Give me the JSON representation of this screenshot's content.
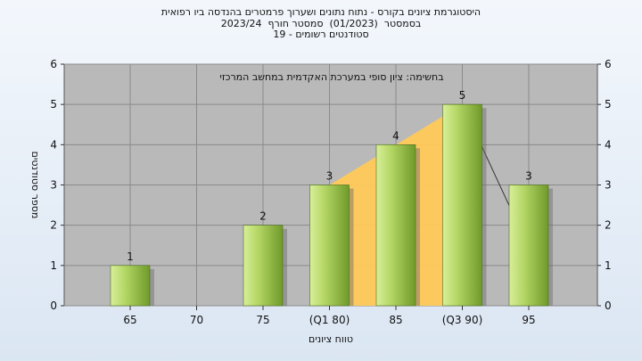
{
  "header": {
    "title_lines": [
      "היסטוגרמת ציונים בקורס - נתוח נתונים ושערוך פרמטרים בהנדסה ביו רפואית",
      "בסמסטר  (01/2023)  סמסטר חורף  2023/24",
      "סטודנטים רשומים - 19"
    ]
  },
  "colors": {
    "background": "#e4ecf6",
    "plot_bg": "#b9b9b9",
    "bar_light": "#d8ef9a",
    "bar_dark": "#6f9a2a",
    "area_fill": "#ffc958",
    "line": "#333333"
  },
  "chart_data": {
    "type": "bar",
    "categories": [
      "65",
      "70",
      "75",
      "(Q1 80)",
      "85",
      "(Q3 90)",
      "95"
    ],
    "values": [
      1,
      0,
      2,
      3,
      4,
      5,
      3
    ],
    "data_labels": [
      "1",
      "",
      "2",
      "3",
      "4",
      "5",
      "3"
    ],
    "annotation": "בחשימה: ציון סופי במערכת האקדמית במחשב המרכזי",
    "xlabel": "טווח ציונים",
    "ylabel": "מספר סטודנטים",
    "ylim": [
      0,
      6
    ],
    "yticks": [
      0,
      1,
      2,
      3,
      4,
      5,
      6
    ],
    "grid": true,
    "overlay": {
      "area_between": [
        "(Q1 80)",
        "(Q3 90)"
      ],
      "line_from": "(Q3 90)",
      "line_to": "95"
    }
  }
}
